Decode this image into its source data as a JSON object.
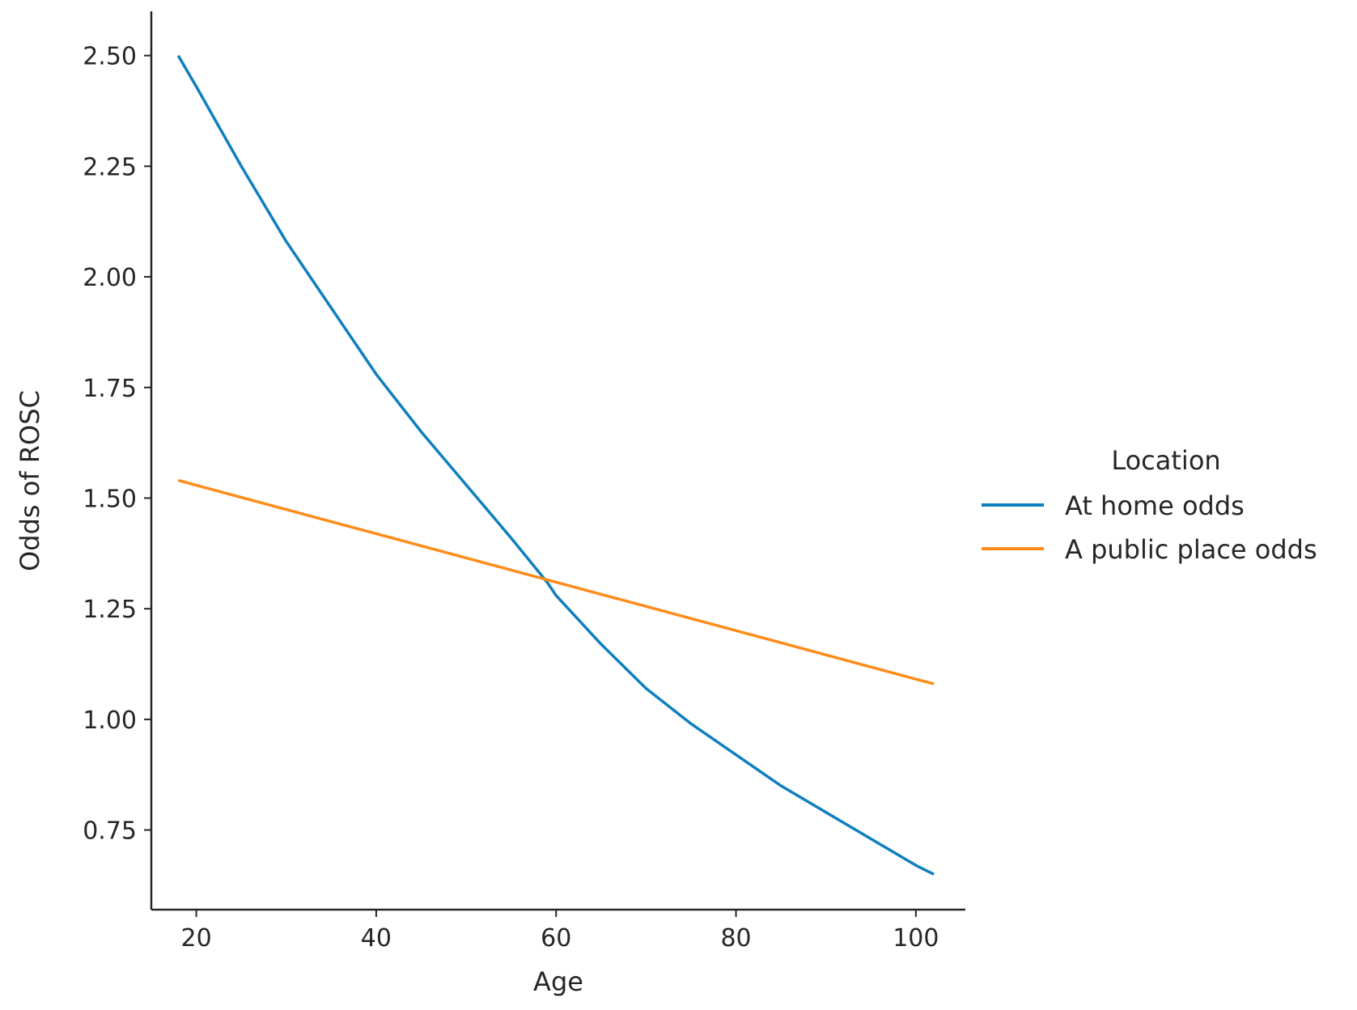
{
  "chart_data": {
    "type": "line",
    "title": "",
    "xlabel": "Age",
    "ylabel": "Odds of ROSC",
    "xlim": [
      15,
      105.5
    ],
    "ylim": [
      0.57,
      2.6
    ],
    "xticks": [
      20,
      40,
      60,
      80,
      100
    ],
    "xtick_labels": [
      "20",
      "40",
      "60",
      "80",
      "100"
    ],
    "yticks": [
      0.75,
      1.0,
      1.25,
      1.5,
      1.75,
      2.0,
      2.25,
      2.5
    ],
    "ytick_labels": [
      "0.75",
      "1.00",
      "1.25",
      "1.50",
      "1.75",
      "2.00",
      "2.25",
      "2.50"
    ],
    "grid": false,
    "legend": {
      "title": "Location",
      "placement": "right outside"
    },
    "series": [
      {
        "name": "At home odds",
        "color": "#0f7fbf",
        "x": [
          18,
          20,
          25,
          30,
          35,
          40,
          45,
          50,
          55,
          59,
          60,
          65,
          70,
          75,
          80,
          85,
          90,
          95,
          100,
          102
        ],
        "y": [
          2.5,
          2.43,
          2.25,
          2.08,
          1.93,
          1.78,
          1.65,
          1.53,
          1.41,
          1.31,
          1.28,
          1.17,
          1.07,
          0.99,
          0.92,
          0.85,
          0.79,
          0.73,
          0.67,
          0.65
        ]
      },
      {
        "name": "A public place odds",
        "color": "#ff8c1a",
        "x": [
          18,
          102
        ],
        "y": [
          1.54,
          1.08
        ]
      }
    ]
  }
}
